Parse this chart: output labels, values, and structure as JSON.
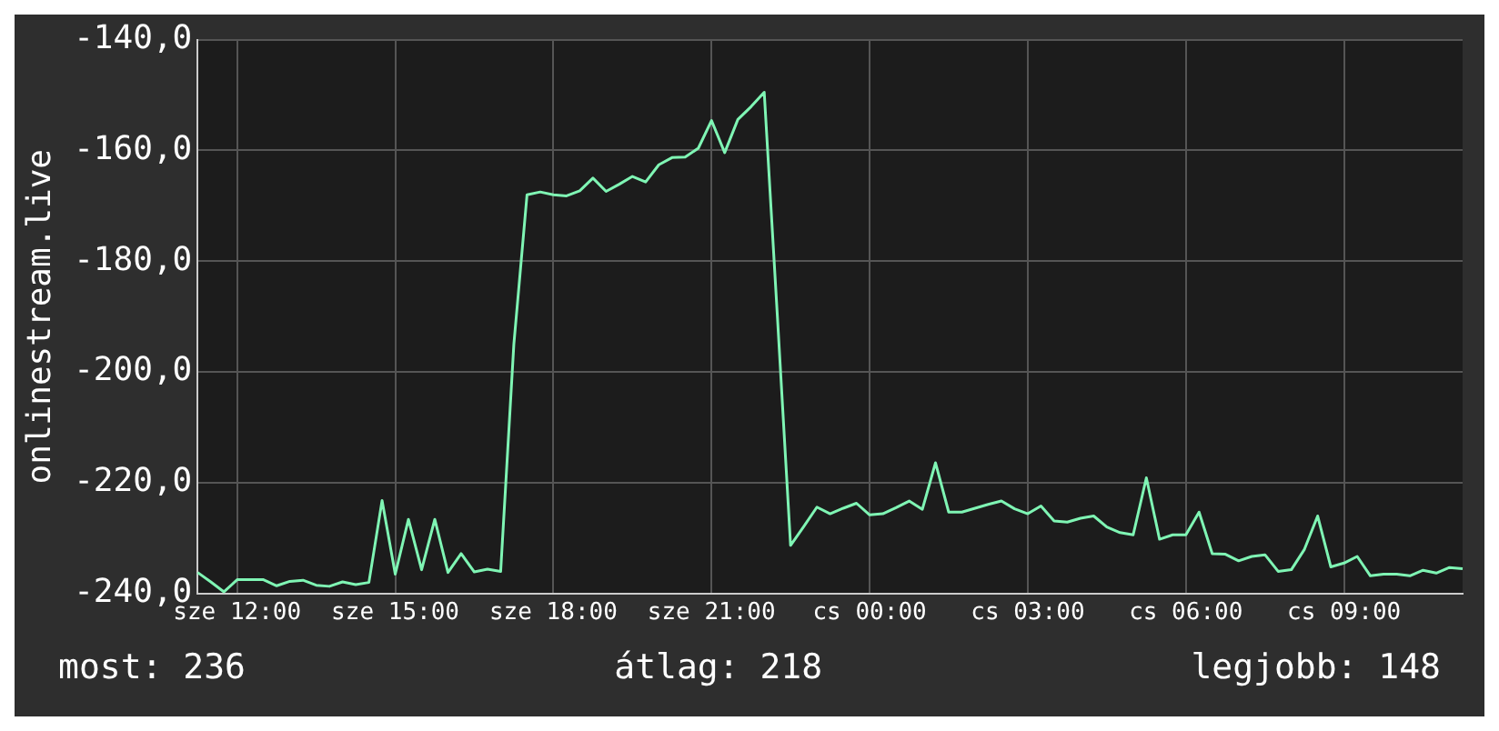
{
  "chart_data": {
    "type": "line",
    "ylabel": "onlinestream.live",
    "categories": [
      null,
      null,
      null,
      "sze 12:00",
      null,
      null,
      null,
      null,
      null,
      null,
      null,
      null,
      null,
      null,
      null,
      "sze 15:00",
      null,
      null,
      null,
      null,
      null,
      null,
      null,
      null,
      null,
      null,
      null,
      "sze 18:00",
      null,
      null,
      null,
      null,
      null,
      null,
      null,
      null,
      null,
      null,
      null,
      "sze 21:00",
      null,
      null,
      null,
      null,
      null,
      null,
      null,
      null,
      null,
      null,
      null,
      "cs 00:00",
      null,
      null,
      null,
      null,
      null,
      null,
      null,
      null,
      null,
      null,
      null,
      "cs 03:00",
      null,
      null,
      null,
      null,
      null,
      null,
      null,
      null,
      null,
      null,
      null,
      "cs 06:00",
      null,
      null,
      null,
      null,
      null,
      null,
      null,
      null,
      null,
      null,
      null,
      "cs 09:00",
      null,
      null,
      null,
      null,
      null,
      null,
      null,
      null,
      null
    ],
    "series": [
      {
        "color": "#7ff5b4",
        "values": [
          -236.2,
          -237.9,
          -239.7,
          -237.5,
          -237.5,
          -237.5,
          -238.6,
          -237.8,
          -237.6,
          -238.5,
          -238.7,
          -237.9,
          -238.4,
          -238.0,
          -223.2,
          -236.5,
          -226.6,
          -235.7,
          -226.6,
          -236.2,
          -232.8,
          -236.1,
          -235.6,
          -236.0,
          -195.0,
          -168.0,
          -167.5,
          -168.0,
          -168.2,
          -167.3,
          -165.0,
          -167.4,
          -166.1,
          -164.7,
          -165.7,
          -162.6,
          -161.3,
          -161.2,
          -159.6,
          -154.6,
          -160.4,
          -154.4,
          -152.1,
          -149.5,
          -190.0,
          -231.3,
          -227.9,
          -224.4,
          -225.6,
          -224.6,
          -223.7,
          -225.8,
          -225.6,
          -224.5,
          -223.3,
          -224.8,
          -216.4,
          -225.3,
          -225.3,
          -224.6,
          -223.9,
          -223.3,
          -224.7,
          -225.6,
          -224.2,
          -226.9,
          -227.1,
          -226.4,
          -226.0,
          -228.0,
          -229.0,
          -229.4,
          -219.1,
          -230.2,
          -229.4,
          -229.4,
          -225.3,
          -232.8,
          -232.9,
          -234.1,
          -233.3,
          -233.0,
          -236.0,
          -235.7,
          -232.0,
          -226.0,
          -235.2,
          -234.5,
          -233.3,
          -236.8,
          -236.5,
          -236.5,
          -236.8,
          -235.8,
          -236.3,
          -235.3,
          -235.5
        ]
      }
    ],
    "ylim": [
      -240,
      -140
    ],
    "yticks": [
      {
        "value": -240,
        "label": "-240,0"
      },
      {
        "value": -220,
        "label": "-220,0"
      },
      {
        "value": -200,
        "label": "-200,0"
      },
      {
        "value": -180,
        "label": "-180,0"
      },
      {
        "value": -160,
        "label": "-160,0"
      },
      {
        "value": -140,
        "label": "-140,0"
      }
    ],
    "grid": true,
    "marker": "none",
    "line_style": "solid",
    "annotations": [
      "most: 236",
      "átlag: 218",
      "legjobb: 148"
    ]
  }
}
